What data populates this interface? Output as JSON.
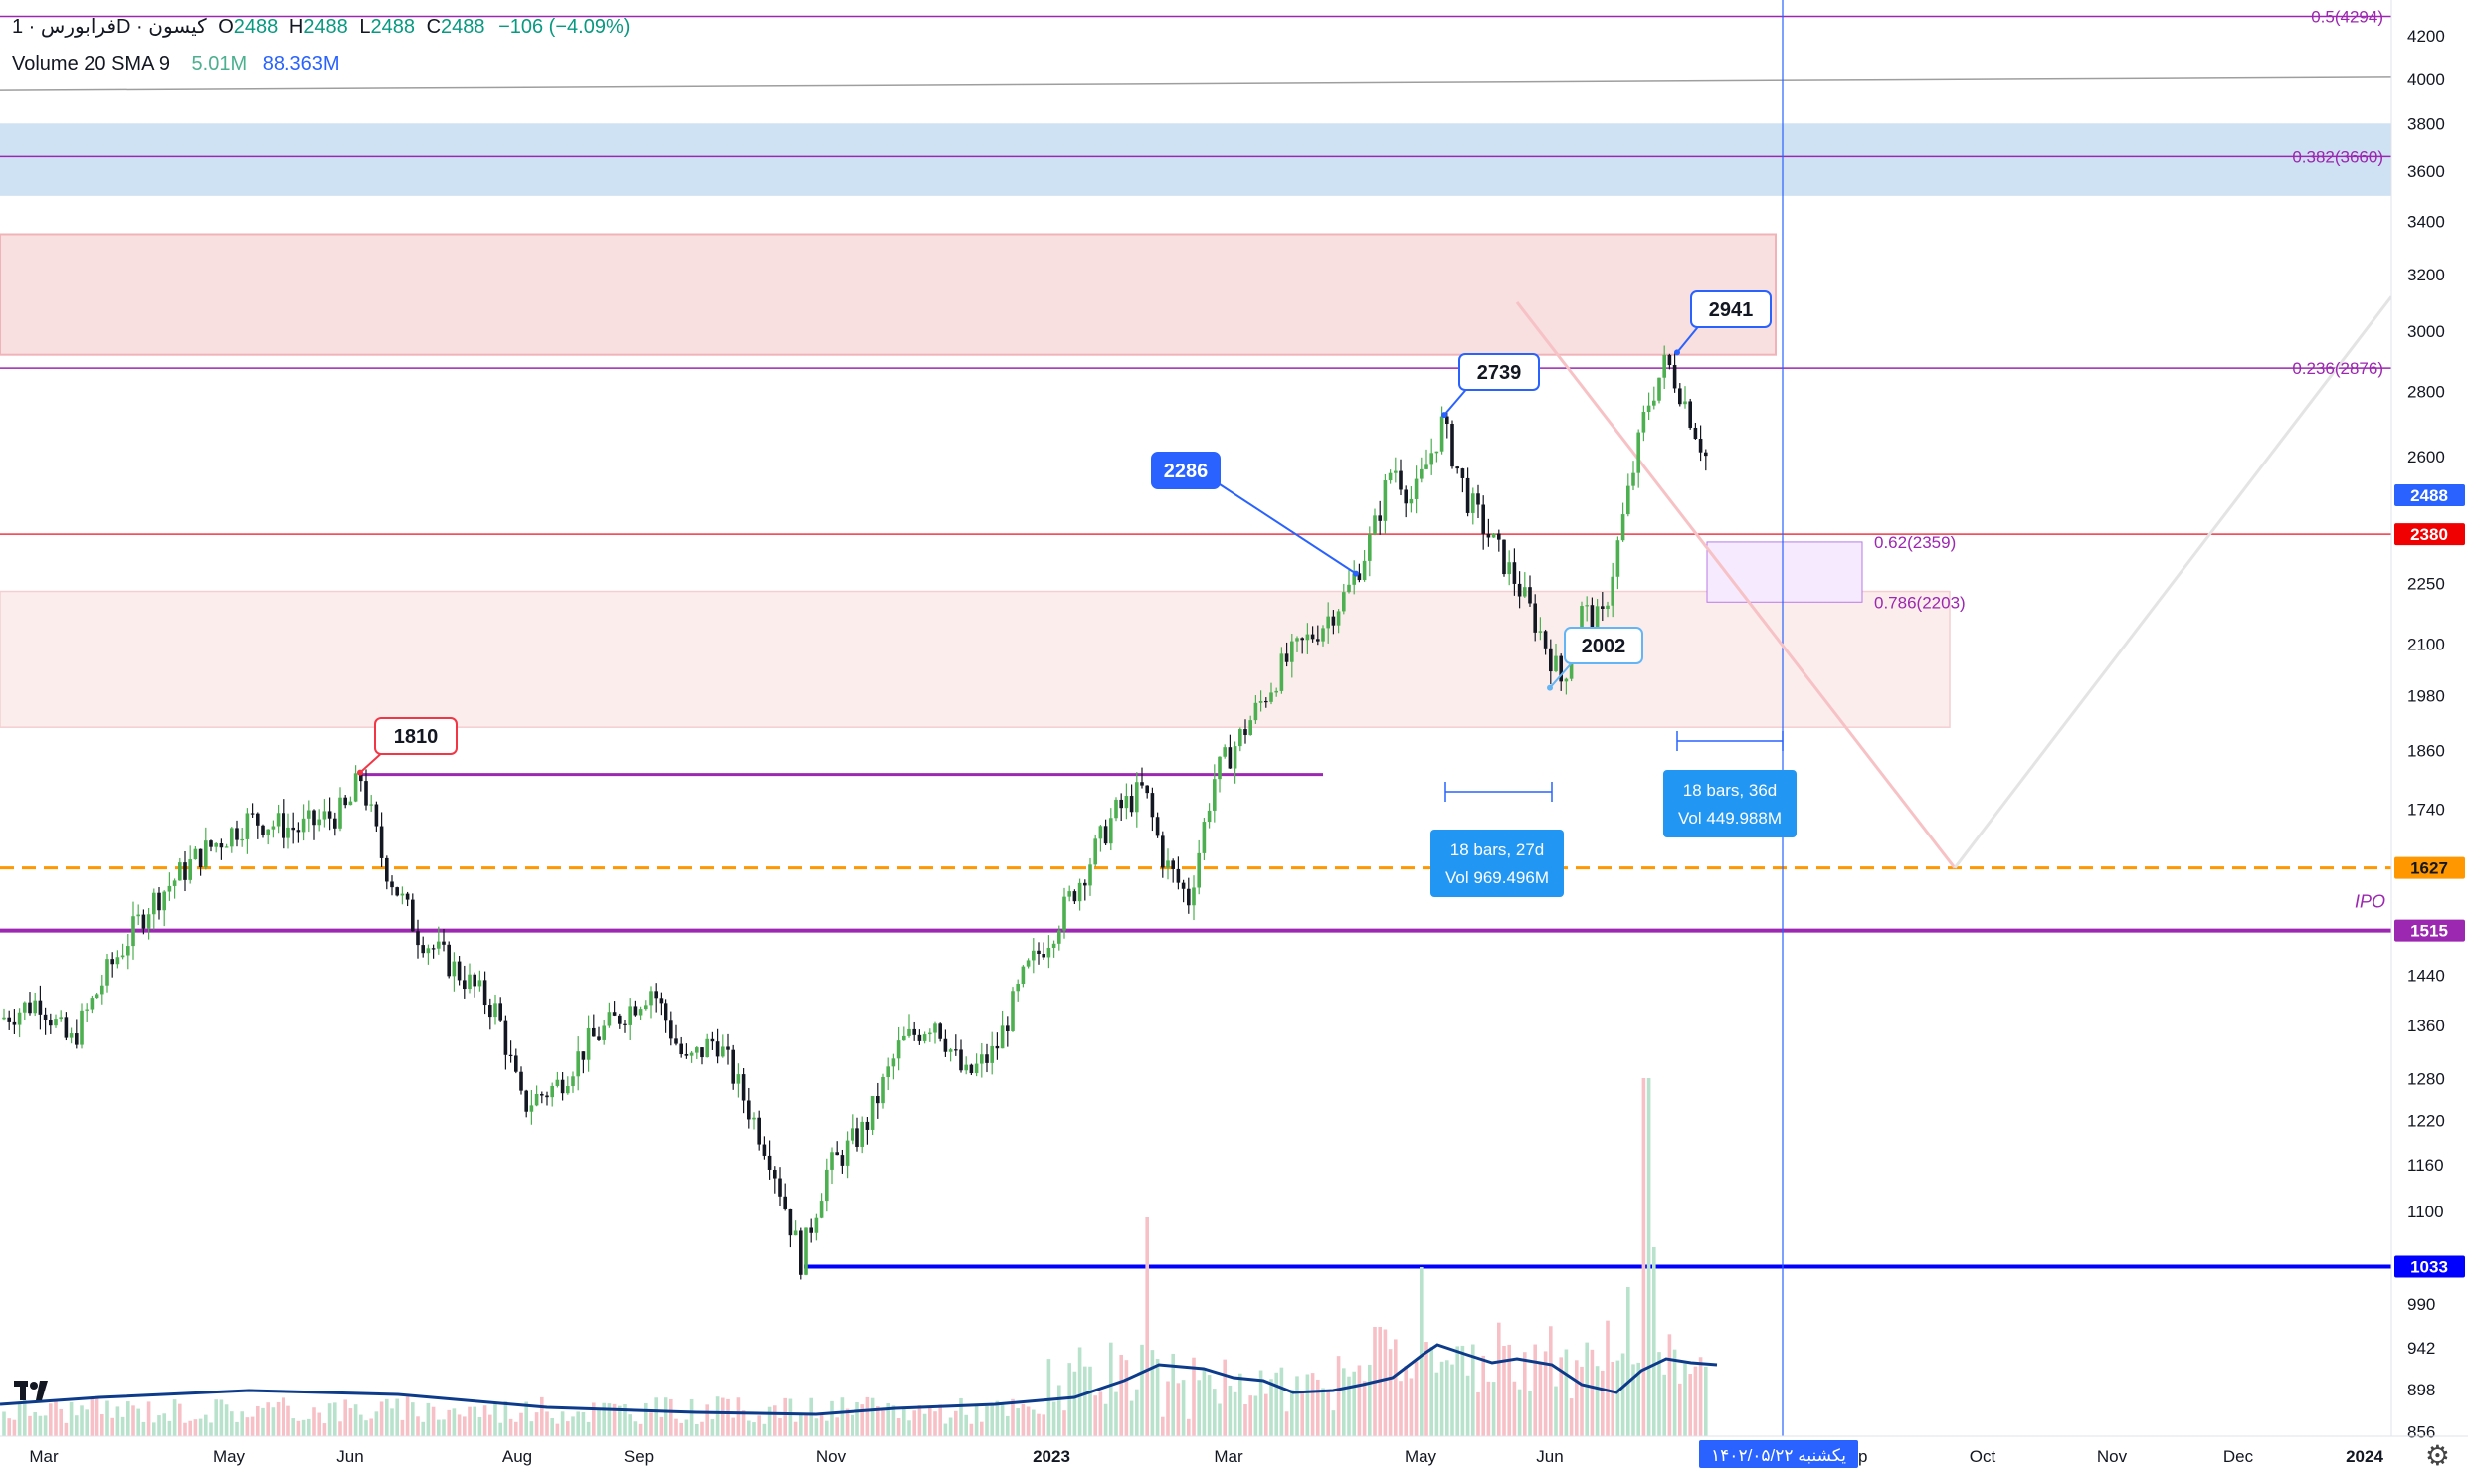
{
  "header": {
    "symbol": "فرابورس · 1D · کیسون",
    "o_label": "O",
    "o": "2488",
    "h_label": "H",
    "h": "2488",
    "l_label": "L",
    "l": "2488",
    "c_label": "C",
    "c": "2488",
    "change": "−106 (−4.09%)",
    "volume_label": "Volume 20 SMA 9",
    "volume_value": "5.01M",
    "volume_sma": "88.363M"
  },
  "chart_data": {
    "type": "candlestick",
    "y_scale": "log",
    "ylim": [
      850,
      4400
    ],
    "price_ticks": [
      4200,
      4000,
      3800,
      3600,
      3400,
      3200,
      3000,
      2800,
      2600,
      2250,
      2100,
      1980,
      1860,
      1740,
      1440,
      1360,
      1280,
      1220,
      1160,
      1100,
      990,
      942,
      898,
      856
    ],
    "x_ticks": [
      "Mar",
      "May",
      "Jun",
      "Aug",
      "Sep",
      "Nov",
      "2023",
      "Mar",
      "May",
      "Jun",
      "ep",
      "Oct",
      "Nov",
      "Dec",
      "2024"
    ],
    "date_badge": "یکشنبه ۱۴۰۲/۰۵/۲۲",
    "price_badges": [
      {
        "value": "2488",
        "color": "#2962ff"
      },
      {
        "value": "2380",
        "color": "#f00000"
      },
      {
        "value": "1627",
        "color": "#ff9800"
      },
      {
        "value": "1515",
        "color": "#9c27b0"
      },
      {
        "value": "1033",
        "color": "#0000ff"
      }
    ],
    "fib_labels": [
      {
        "text": "0.5(4294)",
        "price": 4294
      },
      {
        "text": "0.382(3660)",
        "price": 3660
      },
      {
        "text": "0.236(2876)",
        "price": 2876
      }
    ],
    "retracement_labels": [
      {
        "text": "0.62(2359)",
        "price": 2359
      },
      {
        "text": "0.786(2203)",
        "price": 2203
      }
    ],
    "horizontal_lines": [
      {
        "price": 4294,
        "color": "#9c27b0"
      },
      {
        "price": 3660,
        "color": "#9c27b0"
      },
      {
        "price": 2876,
        "color": "#9c27b0"
      },
      {
        "price": 2380,
        "color": "#f23645"
      },
      {
        "price": 1627,
        "color": "#ff9800",
        "dashed": true
      },
      {
        "price": 1515,
        "color": "#9c27b0"
      },
      {
        "price": 1033,
        "color": "#0000ff"
      }
    ],
    "callouts": [
      {
        "text": "2941",
        "price": 2941
      },
      {
        "text": "2739",
        "price": 2739
      },
      {
        "text": "2286",
        "price": 2286
      },
      {
        "text": "2002",
        "price": 2002
      },
      {
        "text": "1810",
        "price": 1810
      }
    ],
    "measure_boxes": [
      {
        "line1": "18 bars, 27d",
        "line2": "Vol 969.496M"
      },
      {
        "line1": "18 bars, 36d",
        "line2": "Vol 449.988M"
      }
    ],
    "ipo_label": "IPO",
    "anchor_points": [
      {
        "x": 0,
        "price": 1370
      },
      {
        "x": 40,
        "price": 1400
      },
      {
        "x": 70,
        "price": 1330
      },
      {
        "x": 110,
        "price": 1450
      },
      {
        "x": 150,
        "price": 1560
      },
      {
        "x": 200,
        "price": 1650
      },
      {
        "x": 250,
        "price": 1720
      },
      {
        "x": 300,
        "price": 1700
      },
      {
        "x": 350,
        "price": 1740
      },
      {
        "x": 362,
        "price": 1810
      },
      {
        "x": 385,
        "price": 1640
      },
      {
        "x": 420,
        "price": 1510
      },
      {
        "x": 470,
        "price": 1430
      },
      {
        "x": 500,
        "price": 1380
      },
      {
        "x": 525,
        "price": 1240
      },
      {
        "x": 560,
        "price": 1270
      },
      {
        "x": 590,
        "price": 1330
      },
      {
        "x": 620,
        "price": 1370
      },
      {
        "x": 655,
        "price": 1420
      },
      {
        "x": 690,
        "price": 1300
      },
      {
        "x": 720,
        "price": 1340
      },
      {
        "x": 745,
        "price": 1260
      },
      {
        "x": 775,
        "price": 1170
      },
      {
        "x": 805,
        "price": 1040
      },
      {
        "x": 830,
        "price": 1150
      },
      {
        "x": 870,
        "price": 1210
      },
      {
        "x": 905,
        "price": 1330
      },
      {
        "x": 940,
        "price": 1370
      },
      {
        "x": 970,
        "price": 1280
      },
      {
        "x": 1000,
        "price": 1320
      },
      {
        "x": 1030,
        "price": 1440
      },
      {
        "x": 1060,
        "price": 1520
      },
      {
        "x": 1090,
        "price": 1620
      },
      {
        "x": 1120,
        "price": 1730
      },
      {
        "x": 1150,
        "price": 1780
      },
      {
        "x": 1170,
        "price": 1640
      },
      {
        "x": 1195,
        "price": 1570
      },
      {
        "x": 1220,
        "price": 1800
      },
      {
        "x": 1250,
        "price": 1900
      },
      {
        "x": 1290,
        "price": 2050
      },
      {
        "x": 1330,
        "price": 2150
      },
      {
        "x": 1355,
        "price": 2230
      },
      {
        "x": 1380,
        "price": 2380
      },
      {
        "x": 1400,
        "price": 2580
      },
      {
        "x": 1420,
        "price": 2470
      },
      {
        "x": 1450,
        "price": 2700
      },
      {
        "x": 1475,
        "price": 2480
      },
      {
        "x": 1500,
        "price": 2360
      },
      {
        "x": 1525,
        "price": 2250
      },
      {
        "x": 1550,
        "price": 2120
      },
      {
        "x": 1570,
        "price": 2010
      },
      {
        "x": 1590,
        "price": 2180
      },
      {
        "x": 1610,
        "price": 2150
      },
      {
        "x": 1630,
        "price": 2400
      },
      {
        "x": 1655,
        "price": 2750
      },
      {
        "x": 1675,
        "price": 2900
      },
      {
        "x": 1690,
        "price": 2800
      },
      {
        "x": 1715,
        "price": 2600
      }
    ]
  }
}
